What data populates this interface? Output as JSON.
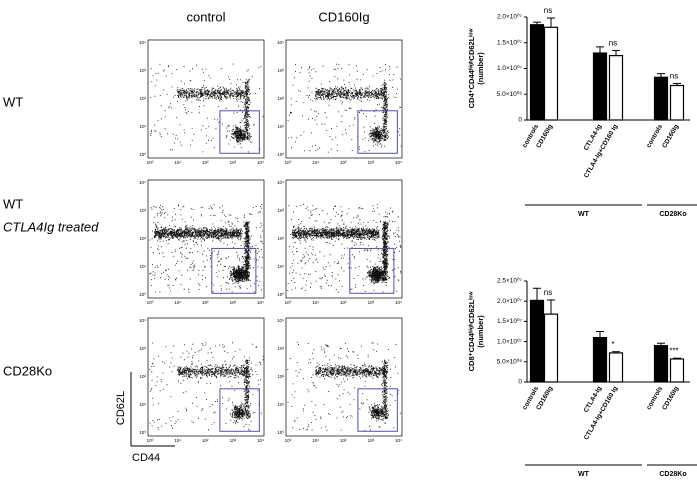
{
  "flow": {
    "columns": [
      "control",
      "CD160Ig"
    ],
    "rows": [
      [
        "WT"
      ],
      [
        "WT",
        "CTLA4Ig treated"
      ],
      [
        "CD28Ko"
      ]
    ],
    "gates": [
      [
        "35.3",
        "32.6"
      ],
      [
        "19.4",
        "11.3"
      ],
      [
        "19.6",
        "5.35"
      ]
    ],
    "axis_ticks": [
      "10⁰",
      "10¹",
      "10²",
      "10³",
      "10⁴"
    ],
    "x_label": "CD44",
    "y_label": "CD62L"
  },
  "chart_data": [
    {
      "type": "bar",
      "ylabel": [
        "CD4⁺CD44ʰⁱᵍʰCD62Lˡᵒʷ",
        "(number)"
      ],
      "categories": [
        "controls",
        "CD160Ig",
        "CTLA4-Ig",
        "CTLA4-Ig+CD160 Ig",
        "controls",
        "CD160Ig"
      ],
      "values": [
        18500000,
        18000000,
        13000000,
        12500000,
        8300000,
        6700000
      ],
      "errors": [
        500000,
        1800000,
        1200000,
        1000000,
        700000,
        400000
      ],
      "colors": [
        "#000000",
        "#ffffff",
        "#000000",
        "#ffffff",
        "#000000",
        "#ffffff"
      ],
      "annotations": [
        null,
        "ns",
        null,
        "ns",
        null,
        "ns"
      ],
      "groups": [
        {
          "label": "WT",
          "span": 4
        },
        {
          "label": "CD28Ko",
          "span": 2
        }
      ],
      "ylim": [
        0,
        20000000
      ],
      "yticks": [
        0,
        {
          "value": 5000000,
          "label": "5.0×10⁰⁶"
        },
        {
          "value": 10000000,
          "label": "1.0×10⁰⁷"
        },
        {
          "value": 15000000,
          "label": "1.5×10⁰⁷"
        },
        {
          "value": 20000000,
          "label": "2.0×10⁰⁷"
        }
      ]
    },
    {
      "type": "bar",
      "ylabel": [
        "CD8⁺CD44ʰⁱᵍʰCD62Lˡᵒʷ",
        "(number)"
      ],
      "categories": [
        "controls",
        "CD160Ig",
        "CTLA4-Ig",
        "CTLA4-Ig+CD160 Ig",
        "controls",
        "CD160Ig"
      ],
      "values": [
        20200000,
        16800000,
        11000000,
        7200000,
        9000000,
        5700000
      ],
      "errors": [
        3000000,
        3500000,
        1500000,
        300000,
        600000,
        200000
      ],
      "colors": [
        "#000000",
        "#ffffff",
        "#000000",
        "#ffffff",
        "#000000",
        "#ffffff"
      ],
      "annotations": [
        null,
        "ns",
        null,
        "*",
        null,
        "***"
      ],
      "groups": [
        {
          "label": "WT",
          "span": 4
        },
        {
          "label": "CD28Ko",
          "span": 2
        }
      ],
      "ylim": [
        0,
        25000000
      ],
      "yticks": [
        0,
        {
          "value": 5000000,
          "label": "5.0×10⁰⁶"
        },
        {
          "value": 10000000,
          "label": "1.0×10⁰⁷"
        },
        {
          "value": 15000000,
          "label": "1.5×10⁰⁷"
        },
        {
          "value": 20000000,
          "label": "2.0×10⁰⁷"
        },
        {
          "value": 25000000,
          "label": "2.5×10⁰⁷"
        }
      ]
    }
  ]
}
